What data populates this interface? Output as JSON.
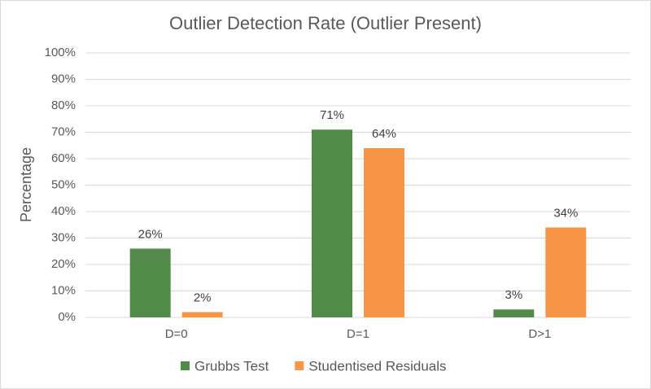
{
  "chart_data": {
    "type": "bar",
    "title": "Outlier Detection Rate (Outlier Present)",
    "y_label": "Percentage",
    "categories": [
      "D=0",
      "D=1",
      "D>1"
    ],
    "series": [
      {
        "name": "Grubbs Test",
        "color": "#538b4a",
        "values": [
          26,
          71,
          3
        ],
        "value_labels": [
          "26%",
          "71%",
          "3%"
        ]
      },
      {
        "name": "Studentised Residuals",
        "color": "#f79646",
        "values": [
          2,
          64,
          34
        ],
        "value_labels": [
          "2%",
          "64%",
          "34%"
        ]
      }
    ],
    "ylim": [
      0,
      100
    ],
    "yticks": [
      {
        "value": 0,
        "label": "0%"
      },
      {
        "value": 10,
        "label": "10%"
      },
      {
        "value": 20,
        "label": "20%"
      },
      {
        "value": 30,
        "label": "30%"
      },
      {
        "value": 40,
        "label": "40%"
      },
      {
        "value": 50,
        "label": "50%"
      },
      {
        "value": 60,
        "label": "60%"
      },
      {
        "value": 70,
        "label": "70%"
      },
      {
        "value": 80,
        "label": "80%"
      },
      {
        "value": 90,
        "label": "90%"
      },
      {
        "value": 100,
        "label": "100%"
      }
    ],
    "grid": true,
    "legend": "bottom"
  }
}
